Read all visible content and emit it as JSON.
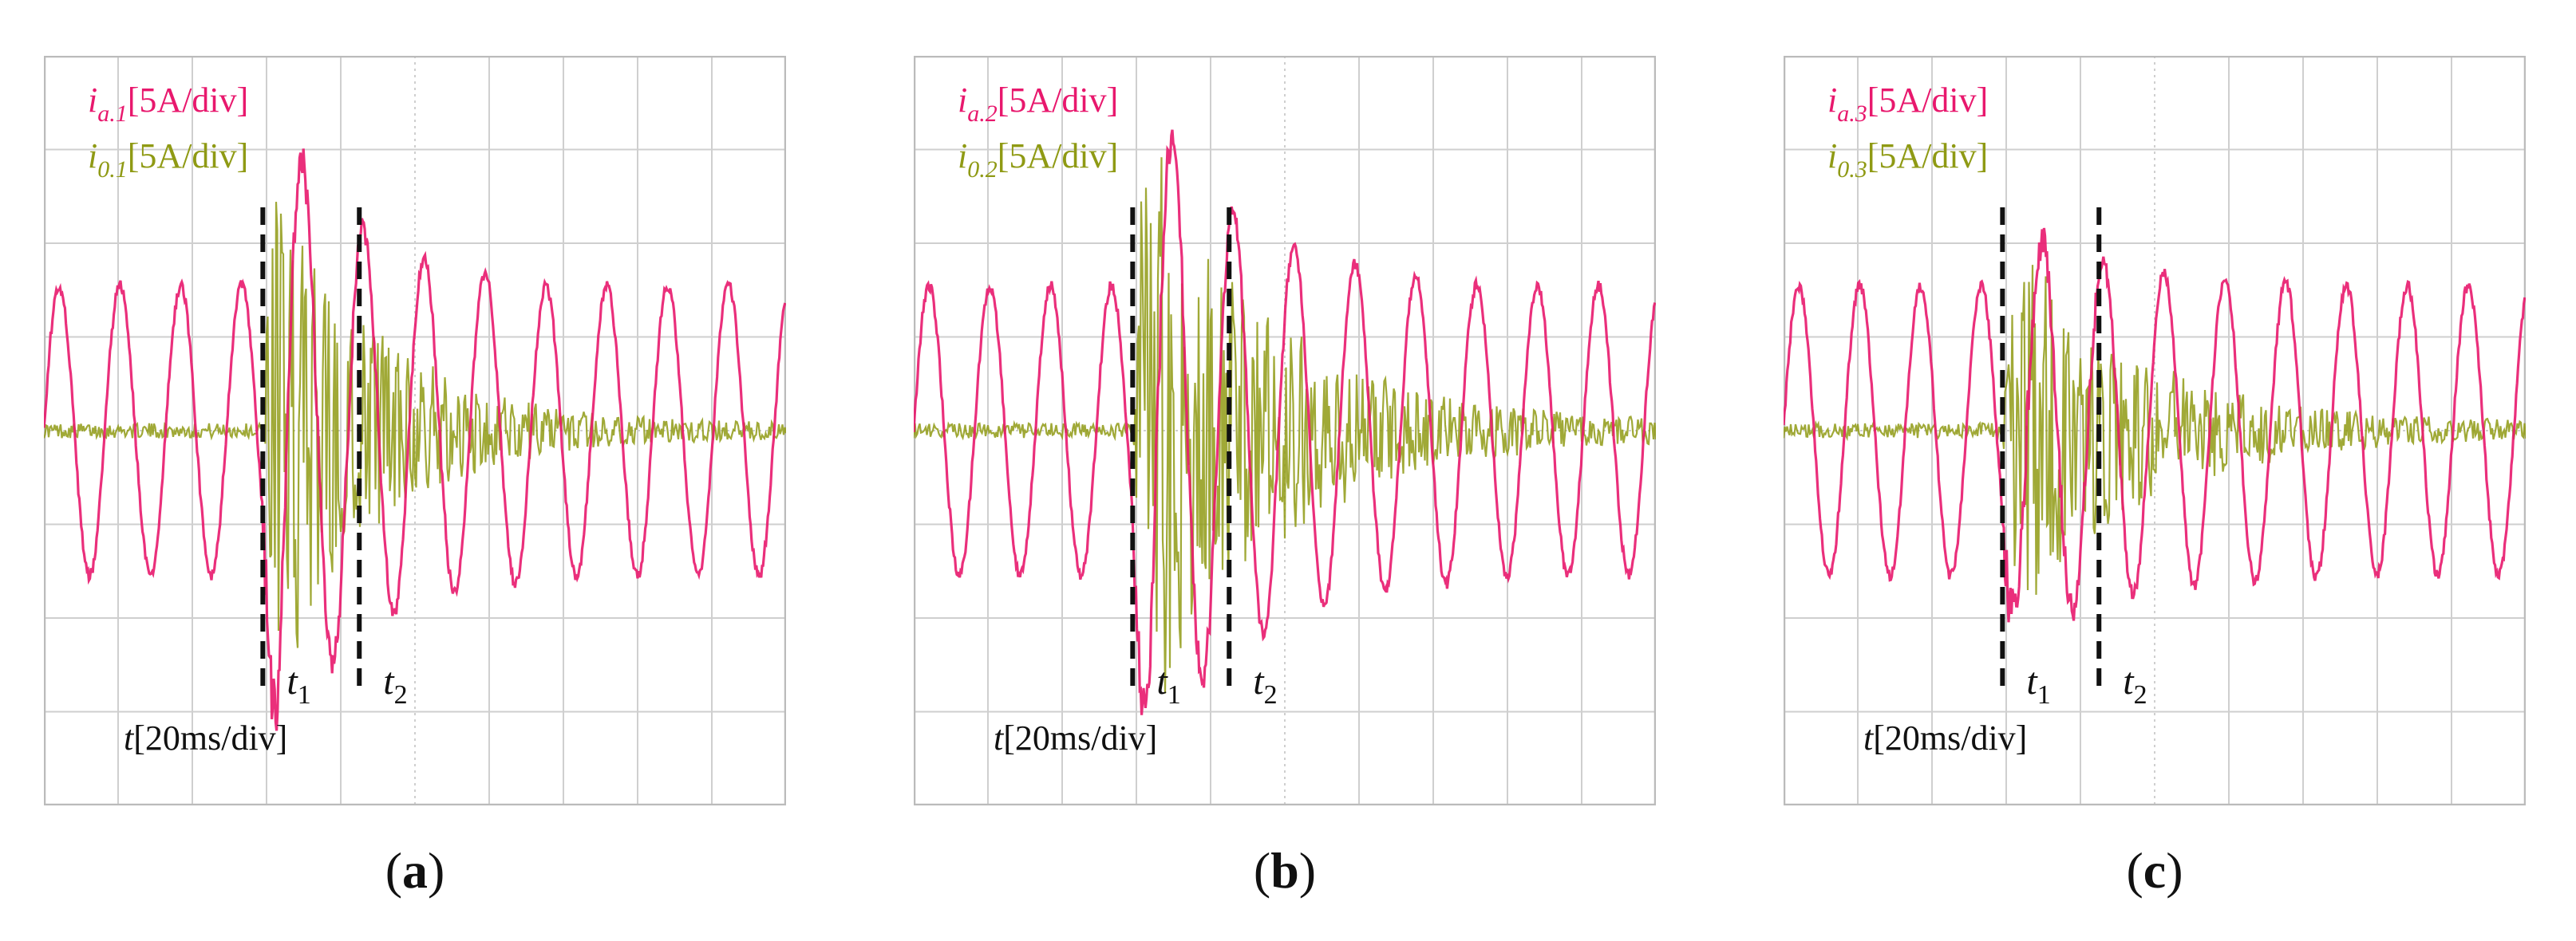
{
  "colors": {
    "ia": "#e8186d",
    "i0": "#8f9a14",
    "grid": "#cfcfcf",
    "marker": "#111111"
  },
  "chart_data": [
    {
      "type": "line",
      "caption_letter": "a",
      "ia_label": {
        "sym": "i",
        "sub": "a.1",
        "scale": "[5A/div]"
      },
      "i0_label": {
        "sym": "i",
        "sub": "0.1",
        "scale": "[5A/div]"
      },
      "t_label": {
        "sym": "t",
        "scale": "[20ms/div]"
      },
      "markers": [
        {
          "label": "t",
          "sub": "1",
          "x_div": 2.95
        },
        {
          "label": "t",
          "sub": "2",
          "x_div": 4.25
        }
      ],
      "xlim_div": [
        0,
        10
      ],
      "ylim_div": [
        -4,
        4
      ],
      "ia_amplitude_div": 1.55,
      "ia_period_div": 0.82,
      "ia_peak_transient_div": 3.9,
      "i0_peak_transient_div": 3.3,
      "decay_end_div": 6.5
    },
    {
      "type": "line",
      "caption_letter": "b",
      "ia_label": {
        "sym": "i",
        "sub": "a.2",
        "scale": "[5A/div]"
      },
      "i0_label": {
        "sym": "i",
        "sub": "0.2",
        "scale": "[5A/div]"
      },
      "t_label": {
        "sym": "t",
        "scale": "[20ms/div]"
      },
      "markers": [
        {
          "label": "t",
          "sub": "1",
          "x_div": 2.95
        },
        {
          "label": "t",
          "sub": "2",
          "x_div": 4.25
        }
      ],
      "xlim_div": [
        0,
        10
      ],
      "ylim_div": [
        -4,
        4
      ],
      "ia_amplitude_div": 1.55,
      "ia_period_div": 0.82,
      "ia_peak_transient_div": 3.9,
      "i0_peak_transient_div": 3.6,
      "decay_end_div": 7.5
    },
    {
      "type": "line",
      "caption_letter": "c",
      "ia_label": {
        "sym": "i",
        "sub": "a.3",
        "scale": "[5A/div]"
      },
      "i0_label": {
        "sym": "i",
        "sub": "0.3",
        "scale": "[5A/div]"
      },
      "t_label": {
        "sym": "t",
        "scale": "[20ms/div]"
      },
      "markers": [
        {
          "label": "t",
          "sub": "1",
          "x_div": 2.95
        },
        {
          "label": "t",
          "sub": "2",
          "x_div": 4.25
        }
      ],
      "xlim_div": [
        0,
        10
      ],
      "ylim_div": [
        -4,
        4
      ],
      "ia_amplitude_div": 1.55,
      "ia_period_div": 0.82,
      "ia_peak_transient_div": 2.3,
      "i0_peak_transient_div": 2.2,
      "decay_end_div": 7.5
    }
  ]
}
